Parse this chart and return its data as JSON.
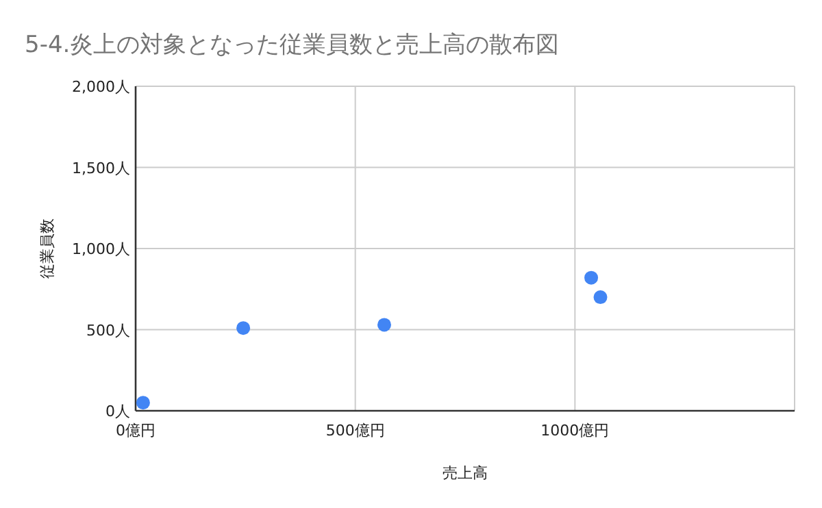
{
  "chart_data": {
    "type": "scatter",
    "title": "5-4.炎上の対象となった従業員数と売上高の散布図",
    "xlabel": "売上高",
    "ylabel": "従業員数",
    "x": [
      17,
      245,
      566,
      1037,
      1058
    ],
    "values": [
      50,
      510,
      530,
      820,
      700
    ],
    "color": "#4285f4",
    "marker": "circle",
    "grid": true,
    "xlim": [
      0,
      1500
    ],
    "xticks": [
      {
        "value": 0,
        "label": "0億円"
      },
      {
        "value": 500,
        "label": "500億円"
      },
      {
        "value": 1000,
        "label": "1000億円"
      },
      {
        "value": 1500,
        "label": null
      }
    ],
    "ylim": [
      0,
      2000
    ],
    "yticks": [
      {
        "value": 0,
        "label": "0人"
      },
      {
        "value": 500,
        "label": "500人"
      },
      {
        "value": 1000,
        "label": "1,000人"
      },
      {
        "value": 1500,
        "label": "1,500人"
      },
      {
        "value": 2000,
        "label": "2,000人"
      }
    ]
  }
}
